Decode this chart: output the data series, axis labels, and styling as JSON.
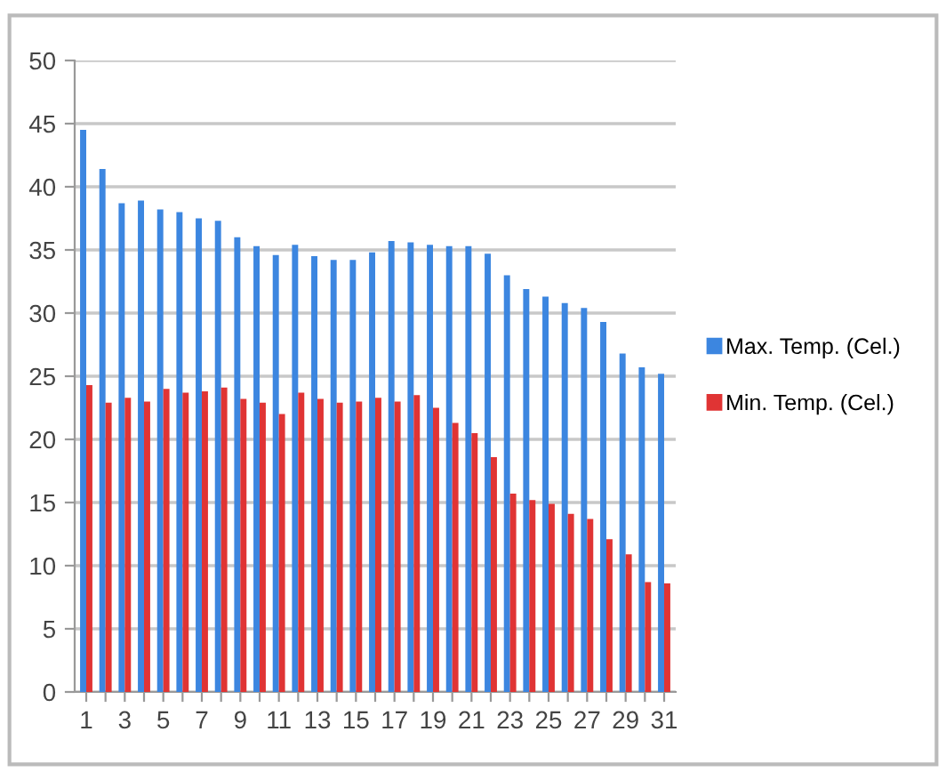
{
  "chart_data": {
    "type": "bar",
    "categories": [
      "1",
      null,
      "3",
      null,
      "5",
      null,
      "7",
      null,
      "9",
      null,
      "11",
      null,
      "13",
      null,
      "15",
      null,
      "17",
      null,
      "19",
      null,
      "21",
      null,
      "23",
      null,
      "25",
      null,
      "27",
      null,
      "29",
      null,
      "31"
    ],
    "series": [
      {
        "name": "Max. Temp. (Cel.)",
        "color": "#3c86e0",
        "values": [
          44.5,
          41.4,
          38.7,
          38.9,
          38.2,
          38.0,
          37.5,
          37.3,
          36.0,
          35.3,
          34.6,
          35.4,
          34.5,
          34.2,
          34.2,
          34.8,
          35.7,
          35.6,
          35.4,
          35.3,
          35.3,
          34.7,
          33.0,
          31.9,
          31.3,
          30.8,
          30.4,
          29.3,
          26.8,
          25.7,
          25.2
        ]
      },
      {
        "name": "Min. Temp. (Cel.)",
        "color": "#e03434",
        "values": [
          24.3,
          22.9,
          23.3,
          23.0,
          24.0,
          23.7,
          23.8,
          24.1,
          23.2,
          22.9,
          22.0,
          23.7,
          23.2,
          22.9,
          23.0,
          23.3,
          23.0,
          23.5,
          22.5,
          21.3,
          20.5,
          18.6,
          15.7,
          15.2,
          14.9,
          14.1,
          13.7,
          12.1,
          10.9,
          8.7,
          8.6
        ]
      }
    ],
    "ylim": [
      0,
      50
    ],
    "yticks": [
      0,
      5,
      10,
      15,
      20,
      25,
      30,
      35,
      40,
      45,
      50
    ],
    "grid": "y",
    "legend": "right"
  }
}
